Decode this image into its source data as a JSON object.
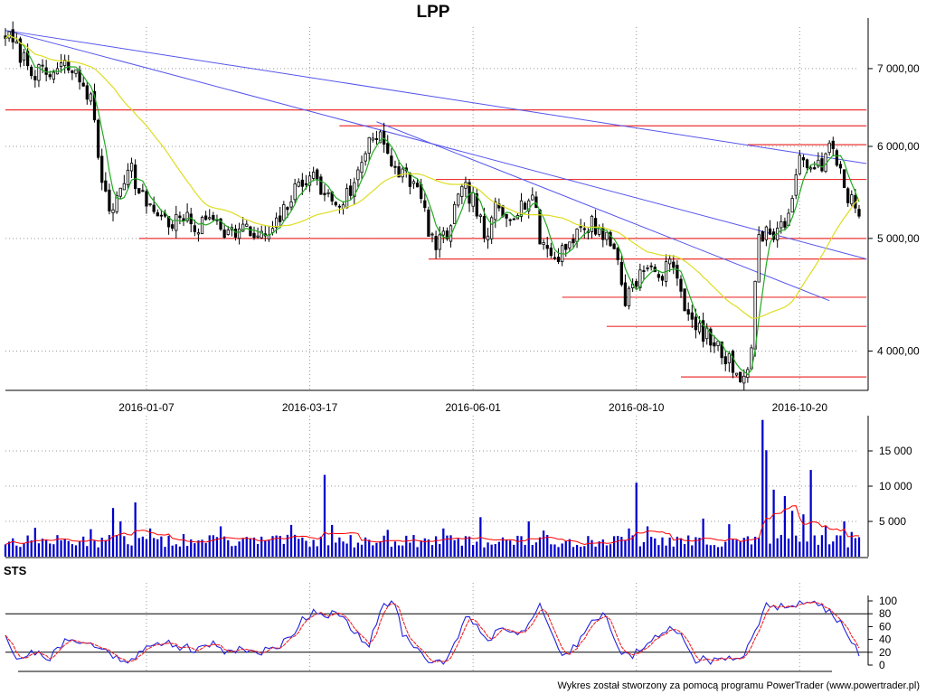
{
  "title": "LPP",
  "footer": "Wykres został stworzony za pomocą programu PowerTrader (www.powertrader.pl)",
  "colors": {
    "candle": "#000000",
    "volume_bar": "#0000cc",
    "volume_ma": "#ff0000",
    "ma_short": "#22aa22",
    "ma_long": "#dddd22",
    "trendline": "#5555ee",
    "support_resistance": "#ee3333",
    "sts_k": "#2222dd",
    "sts_d": "#ee2222"
  },
  "chart_data": [
    {
      "id": "price",
      "type": "candlestick",
      "title": "LPP",
      "y_scale": "log",
      "ylim": [
        3700,
        7600
      ],
      "y_ticks": [
        4000,
        5000,
        6000,
        7000
      ],
      "y_tick_labels": [
        "4 000,00",
        "5 000,00",
        "6 000,00",
        "7 000,00"
      ],
      "x_range": [
        0,
        230
      ],
      "x_ticks": [
        {
          "i": 38,
          "label": "2016-01-07"
        },
        {
          "i": 82,
          "label": "2016-03-17"
        },
        {
          "i": 126,
          "label": "2016-06-01"
        },
        {
          "i": 170,
          "label": "2016-08-10"
        },
        {
          "i": 214,
          "label": "2016-10-20"
        }
      ],
      "anchors": [
        [
          0,
          7500
        ],
        [
          4,
          7200
        ],
        [
          8,
          6950
        ],
        [
          12,
          6900
        ],
        [
          16,
          7050
        ],
        [
          20,
          6850
        ],
        [
          23,
          6600
        ],
        [
          25,
          5900
        ],
        [
          27,
          5400
        ],
        [
          29,
          5300
        ],
        [
          31,
          5600
        ],
        [
          34,
          5750
        ],
        [
          36,
          5450
        ],
        [
          40,
          5300
        ],
        [
          44,
          5150
        ],
        [
          48,
          5200
        ],
        [
          52,
          5100
        ],
        [
          56,
          5250
        ],
        [
          60,
          5050
        ],
        [
          64,
          5100
        ],
        [
          68,
          5000
        ],
        [
          72,
          5050
        ],
        [
          76,
          5350
        ],
        [
          79,
          5550
        ],
        [
          82,
          5700
        ],
        [
          86,
          5450
        ],
        [
          90,
          5350
        ],
        [
          94,
          5550
        ],
        [
          98,
          6100
        ],
        [
          101,
          6200
        ],
        [
          104,
          5700
        ],
        [
          108,
          5700
        ],
        [
          112,
          5400
        ],
        [
          114,
          5100
        ],
        [
          116,
          4900
        ],
        [
          119,
          5050
        ],
        [
          122,
          5400
        ],
        [
          124,
          5500
        ],
        [
          126,
          5400
        ],
        [
          128,
          5150
        ],
        [
          130,
          4950
        ],
        [
          132,
          5350
        ],
        [
          134,
          5250
        ],
        [
          138,
          5300
        ],
        [
          142,
          5450
        ],
        [
          144,
          5000
        ],
        [
          146,
          4900
        ],
        [
          148,
          4800
        ],
        [
          150,
          4900
        ],
        [
          154,
          5050
        ],
        [
          158,
          5150
        ],
        [
          161,
          5050
        ],
        [
          163,
          4950
        ],
        [
          165,
          4800
        ],
        [
          167,
          4400
        ],
        [
          169,
          4600
        ],
        [
          173,
          4700
        ],
        [
          177,
          4650
        ],
        [
          180,
          4800
        ],
        [
          182,
          4500
        ],
        [
          185,
          4200
        ],
        [
          188,
          4150
        ],
        [
          191,
          4050
        ],
        [
          194,
          3950
        ],
        [
          197,
          3850
        ],
        [
          199,
          3800
        ],
        [
          201,
          4000
        ],
        [
          203,
          5050
        ],
        [
          206,
          5050
        ],
        [
          210,
          5150
        ],
        [
          212,
          5400
        ],
        [
          214,
          5800
        ],
        [
          217,
          5850
        ],
        [
          220,
          5700
        ],
        [
          222,
          6000
        ],
        [
          224,
          5850
        ],
        [
          227,
          5450
        ],
        [
          229,
          5300
        ],
        [
          230,
          5250
        ]
      ],
      "seed": 7,
      "overlays": {
        "support_resistance": [
          {
            "price": 6450,
            "from": 0,
            "to": 232
          },
          {
            "price": 6250,
            "from": 90,
            "to": 232
          },
          {
            "price": 6020,
            "from": 200,
            "to": 232
          },
          {
            "price": 5620,
            "from": 116,
            "to": 232
          },
          {
            "price": 5000,
            "from": 36,
            "to": 232
          },
          {
            "price": 4800,
            "from": 114,
            "to": 232
          },
          {
            "price": 4450,
            "from": 150,
            "to": 232
          },
          {
            "price": 4200,
            "from": 162,
            "to": 232
          },
          {
            "price": 3800,
            "from": 182,
            "to": 232
          }
        ],
        "trendlines": [
          [
            0,
            7550,
            232,
            5800
          ],
          [
            0,
            7550,
            232,
            4800
          ],
          [
            100,
            6300,
            222,
            4420
          ]
        ],
        "moving_averages": [
          {
            "period": 5,
            "color_key": "ma_short"
          },
          {
            "period": 30,
            "color_key": "ma_long"
          }
        ]
      }
    },
    {
      "id": "volume",
      "type": "bar",
      "ylim": [
        0,
        20000
      ],
      "y_ticks": [
        5000,
        10000,
        15000
      ],
      "y_tick_labels": [
        "5 000",
        "10 000",
        "15 000"
      ],
      "seed": 13,
      "spikes": [
        [
          8,
          4100
        ],
        [
          23,
          3900
        ],
        [
          29,
          6900
        ],
        [
          31,
          5000
        ],
        [
          35,
          7700
        ],
        [
          39,
          4000
        ],
        [
          48,
          3200
        ],
        [
          58,
          4300
        ],
        [
          77,
          4500
        ],
        [
          86,
          11600
        ],
        [
          88,
          4500
        ],
        [
          103,
          3800
        ],
        [
          118,
          4000
        ],
        [
          128,
          5600
        ],
        [
          141,
          5000
        ],
        [
          145,
          3700
        ],
        [
          168,
          4000
        ],
        [
          170,
          10500
        ],
        [
          173,
          4300
        ],
        [
          188,
          5400
        ],
        [
          195,
          4600
        ],
        [
          204,
          19400
        ],
        [
          205,
          15100
        ],
        [
          207,
          9500
        ],
        [
          210,
          8600
        ],
        [
          212,
          6500
        ],
        [
          215,
          6000
        ],
        [
          217,
          12300
        ],
        [
          221,
          4300
        ],
        [
          225,
          3000
        ],
        [
          226,
          5000
        ],
        [
          228,
          3500
        ]
      ],
      "ma_period": 10
    },
    {
      "id": "sts",
      "type": "line",
      "title": "STS",
      "ylim": [
        0,
        100
      ],
      "y_ticks": [
        0,
        20,
        40,
        60,
        80,
        100
      ],
      "y_tick_labels": [
        "0",
        "20",
        "40",
        "60",
        "80",
        "100"
      ],
      "levels": [
        20,
        80
      ],
      "series": [
        {
          "key": "K",
          "color_key": "sts_k"
        },
        {
          "key": "D",
          "color_key": "sts_d"
        }
      ],
      "anchors": [
        [
          0,
          50
        ],
        [
          3,
          10
        ],
        [
          8,
          20
        ],
        [
          12,
          12
        ],
        [
          16,
          35
        ],
        [
          20,
          40
        ],
        [
          24,
          28
        ],
        [
          28,
          20
        ],
        [
          32,
          5
        ],
        [
          36,
          20
        ],
        [
          40,
          30
        ],
        [
          44,
          35
        ],
        [
          48,
          28
        ],
        [
          52,
          22
        ],
        [
          56,
          35
        ],
        [
          60,
          20
        ],
        [
          64,
          28
        ],
        [
          68,
          18
        ],
        [
          72,
          25
        ],
        [
          76,
          40
        ],
        [
          80,
          70
        ],
        [
          83,
          85
        ],
        [
          86,
          80
        ],
        [
          90,
          78
        ],
        [
          94,
          50
        ],
        [
          98,
          30
        ],
        [
          102,
          100
        ],
        [
          105,
          95
        ],
        [
          107,
          50
        ],
        [
          110,
          30
        ],
        [
          114,
          10
        ],
        [
          118,
          5
        ],
        [
          121,
          30
        ],
        [
          124,
          80
        ],
        [
          127,
          60
        ],
        [
          130,
          40
        ],
        [
          134,
          60
        ],
        [
          138,
          50
        ],
        [
          141,
          65
        ],
        [
          144,
          90
        ],
        [
          146,
          60
        ],
        [
          148,
          40
        ],
        [
          150,
          15
        ],
        [
          152,
          20
        ],
        [
          155,
          40
        ],
        [
          158,
          75
        ],
        [
          161,
          80
        ],
        [
          164,
          45
        ],
        [
          166,
          20
        ],
        [
          169,
          15
        ],
        [
          172,
          25
        ],
        [
          176,
          45
        ],
        [
          180,
          60
        ],
        [
          183,
          40
        ],
        [
          186,
          10
        ],
        [
          189,
          8
        ],
        [
          192,
          5
        ],
        [
          196,
          10
        ],
        [
          199,
          20
        ],
        [
          202,
          55
        ],
        [
          205,
          90
        ],
        [
          210,
          95
        ],
        [
          215,
          98
        ],
        [
          220,
          90
        ],
        [
          222,
          80
        ],
        [
          225,
          70
        ],
        [
          228,
          30
        ],
        [
          230,
          20
        ]
      ],
      "seed": 21
    }
  ]
}
